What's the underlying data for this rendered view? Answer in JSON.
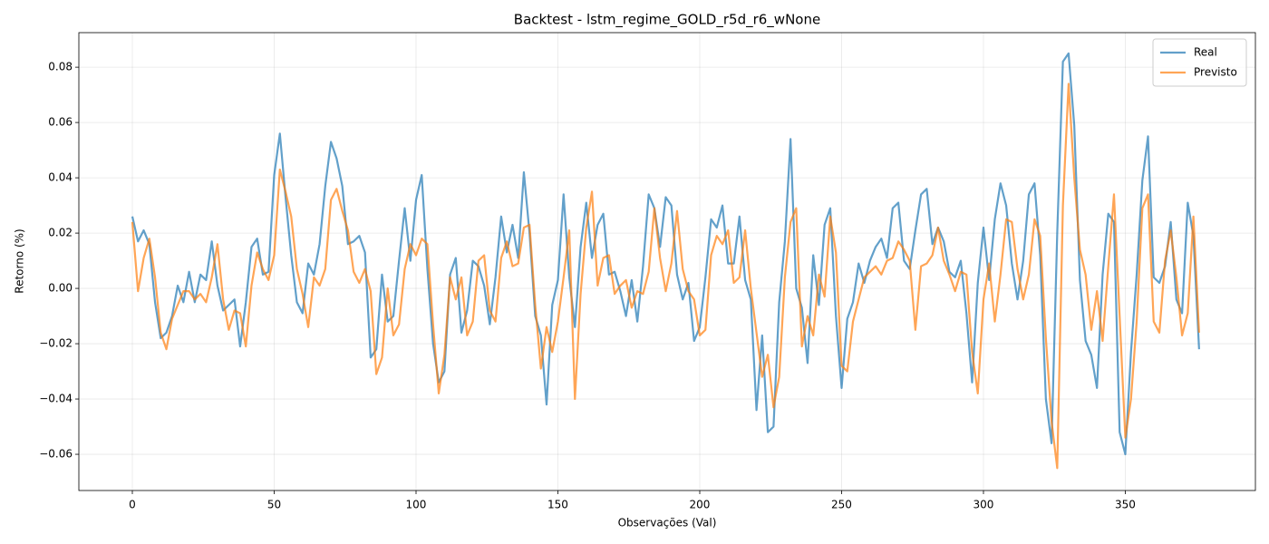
{
  "chart_data": {
    "type": "line",
    "title": "Backtest - lstm_regime_GOLD_r5d_r6_wNone",
    "xlabel": "Observações (Val)",
    "ylabel": "Retorno (%)",
    "x": [
      0,
      2,
      4,
      6,
      8,
      10,
      12,
      14,
      16,
      18,
      20,
      22,
      24,
      26,
      28,
      30,
      32,
      34,
      36,
      38,
      40,
      42,
      44,
      46,
      48,
      50,
      52,
      54,
      56,
      58,
      60,
      62,
      64,
      66,
      68,
      70,
      72,
      74,
      76,
      78,
      80,
      82,
      84,
      86,
      88,
      90,
      92,
      94,
      96,
      98,
      100,
      102,
      104,
      106,
      108,
      110,
      112,
      114,
      116,
      118,
      120,
      122,
      124,
      126,
      128,
      130,
      132,
      134,
      136,
      138,
      140,
      142,
      144,
      146,
      148,
      150,
      152,
      154,
      156,
      158,
      160,
      162,
      164,
      166,
      168,
      170,
      172,
      174,
      176,
      178,
      180,
      182,
      184,
      186,
      188,
      190,
      192,
      194,
      196,
      198,
      200,
      202,
      204,
      206,
      208,
      210,
      212,
      214,
      216,
      218,
      220,
      222,
      224,
      226,
      228,
      230,
      232,
      234,
      236,
      238,
      240,
      242,
      244,
      246,
      248,
      250,
      252,
      254,
      256,
      258,
      260,
      262,
      264,
      266,
      268,
      270,
      272,
      274,
      276,
      278,
      280,
      282,
      284,
      286,
      288,
      290,
      292,
      294,
      296,
      298,
      300,
      302,
      304,
      306,
      308,
      310,
      312,
      314,
      316,
      318,
      320,
      322,
      324,
      326,
      328,
      330,
      332,
      334,
      336,
      338,
      340,
      342,
      344,
      346,
      348,
      350,
      352,
      354,
      356,
      358,
      360,
      362,
      364,
      366,
      368,
      370,
      372,
      374,
      376
    ],
    "series": [
      {
        "name": "Real",
        "color": "#1f77b4",
        "alpha": 0.7,
        "values": [
          0.026,
          0.017,
          0.021,
          0.016,
          -0.005,
          -0.018,
          -0.016,
          -0.01,
          0.001,
          -0.005,
          0.006,
          -0.005,
          0.005,
          0.003,
          0.017,
          0.001,
          -0.008,
          -0.006,
          -0.004,
          -0.021,
          -0.005,
          0.015,
          0.018,
          0.005,
          0.006,
          0.041,
          0.056,
          0.033,
          0.012,
          -0.005,
          -0.009,
          0.009,
          0.005,
          0.016,
          0.037,
          0.053,
          0.047,
          0.037,
          0.016,
          0.017,
          0.019,
          0.013,
          -0.025,
          -0.022,
          0.005,
          -0.012,
          -0.01,
          0.01,
          0.029,
          0.01,
          0.032,
          0.041,
          0.007,
          -0.02,
          -0.034,
          -0.03,
          0.005,
          0.011,
          -0.016,
          -0.008,
          0.01,
          0.008,
          0.001,
          -0.013,
          0.004,
          0.026,
          0.013,
          0.023,
          0.011,
          0.042,
          0.02,
          -0.01,
          -0.017,
          -0.042,
          -0.006,
          0.003,
          0.034,
          0.004,
          -0.014,
          0.015,
          0.031,
          0.011,
          0.023,
          0.027,
          0.005,
          0.006,
          -0.001,
          -0.01,
          0.003,
          -0.012,
          0.008,
          0.034,
          0.029,
          0.015,
          0.033,
          0.03,
          0.005,
          -0.004,
          0.002,
          -0.019,
          -0.014,
          0.004,
          0.025,
          0.022,
          0.03,
          0.009,
          0.009,
          0.026,
          0.003,
          -0.004,
          -0.044,
          -0.017,
          -0.052,
          -0.05,
          -0.005,
          0.017,
          0.054,
          0.0,
          -0.007,
          -0.027,
          0.012,
          -0.006,
          0.023,
          0.029,
          -0.01,
          -0.036,
          -0.011,
          -0.005,
          0.009,
          0.002,
          0.01,
          0.015,
          0.018,
          0.011,
          0.029,
          0.031,
          0.01,
          0.007,
          0.021,
          0.034,
          0.036,
          0.016,
          0.022,
          0.017,
          0.006,
          0.004,
          0.01,
          -0.009,
          -0.034,
          0.002,
          0.022,
          0.003,
          0.025,
          0.038,
          0.03,
          0.009,
          -0.004,
          0.01,
          0.034,
          0.038,
          0.012,
          -0.04,
          -0.056,
          0.02,
          0.082,
          0.085,
          0.059,
          0.003,
          -0.019,
          -0.024,
          -0.036,
          0.005,
          0.027,
          0.024,
          -0.052,
          -0.06,
          -0.023,
          0.005,
          0.039,
          0.055,
          0.004,
          0.002,
          0.008,
          0.024,
          -0.004,
          -0.009,
          0.031,
          0.019,
          -0.022
        ]
      },
      {
        "name": "Previsto",
        "color": "#ff7f0e",
        "alpha": 0.7,
        "values": [
          0.024,
          -0.001,
          0.011,
          0.018,
          0.004,
          -0.016,
          -0.022,
          -0.011,
          -0.006,
          -0.001,
          -0.001,
          -0.004,
          -0.002,
          -0.005,
          0.004,
          0.016,
          -0.004,
          -0.015,
          -0.008,
          -0.009,
          -0.021,
          0.001,
          0.013,
          0.007,
          0.003,
          0.012,
          0.043,
          0.035,
          0.026,
          0.007,
          -0.002,
          -0.014,
          0.004,
          0.001,
          0.007,
          0.032,
          0.036,
          0.028,
          0.021,
          0.006,
          0.002,
          0.007,
          -0.001,
          -0.031,
          -0.025,
          0.0,
          -0.017,
          -0.013,
          0.007,
          0.016,
          0.012,
          0.018,
          0.016,
          -0.013,
          -0.038,
          -0.024,
          0.004,
          -0.004,
          0.004,
          -0.017,
          -0.012,
          0.01,
          0.012,
          -0.008,
          -0.012,
          0.011,
          0.017,
          0.008,
          0.009,
          0.022,
          0.023,
          -0.006,
          -0.029,
          -0.014,
          -0.023,
          -0.012,
          0.004,
          0.021,
          -0.04,
          -0.002,
          0.022,
          0.035,
          0.001,
          0.011,
          0.012,
          -0.002,
          0.001,
          0.003,
          -0.007,
          -0.001,
          -0.002,
          0.006,
          0.029,
          0.011,
          -0.001,
          0.009,
          0.028,
          0.007,
          -0.001,
          -0.004,
          -0.017,
          -0.015,
          0.012,
          0.019,
          0.016,
          0.021,
          0.002,
          0.004,
          0.021,
          0.0,
          -0.016,
          -0.032,
          -0.024,
          -0.043,
          -0.032,
          0.004,
          0.024,
          0.029,
          -0.021,
          -0.01,
          -0.017,
          0.005,
          -0.003,
          0.026,
          0.013,
          -0.028,
          -0.03,
          -0.012,
          -0.004,
          0.004,
          0.006,
          0.008,
          0.005,
          0.01,
          0.011,
          0.017,
          0.014,
          0.01,
          -0.015,
          0.008,
          0.009,
          0.012,
          0.022,
          0.01,
          0.005,
          -0.001,
          0.006,
          0.005,
          -0.023,
          -0.038,
          -0.004,
          0.009,
          -0.012,
          0.005,
          0.025,
          0.024,
          0.007,
          -0.004,
          0.005,
          0.025,
          0.019,
          -0.018,
          -0.048,
          -0.065,
          0.03,
          0.074,
          0.04,
          0.014,
          0.005,
          -0.015,
          -0.001,
          -0.019,
          0.008,
          0.034,
          -0.01,
          -0.054,
          -0.04,
          -0.012,
          0.029,
          0.034,
          -0.012,
          -0.016,
          0.01,
          0.021,
          0.004,
          -0.017,
          -0.009,
          0.026,
          -0.016
        ]
      }
    ],
    "xlim": [
      -18.85,
      395.85
    ],
    "xticks": [
      0,
      50,
      100,
      150,
      200,
      250,
      300,
      350
    ],
    "ylim": [
      -0.0731,
      0.0925
    ],
    "yticks": [
      {
        "value": -0.06,
        "label": "−0.06"
      },
      {
        "value": -0.04,
        "label": "−0.04"
      },
      {
        "value": -0.02,
        "label": "−0.02"
      },
      {
        "value": 0,
        "label": "0.00"
      },
      {
        "value": 0.02,
        "label": "0.02"
      },
      {
        "value": 0.04,
        "label": "0.04"
      },
      {
        "value": 0.06,
        "label": "0.06"
      },
      {
        "value": 0.08,
        "label": "0.08"
      }
    ],
    "grid": true,
    "legend": "upper right"
  }
}
